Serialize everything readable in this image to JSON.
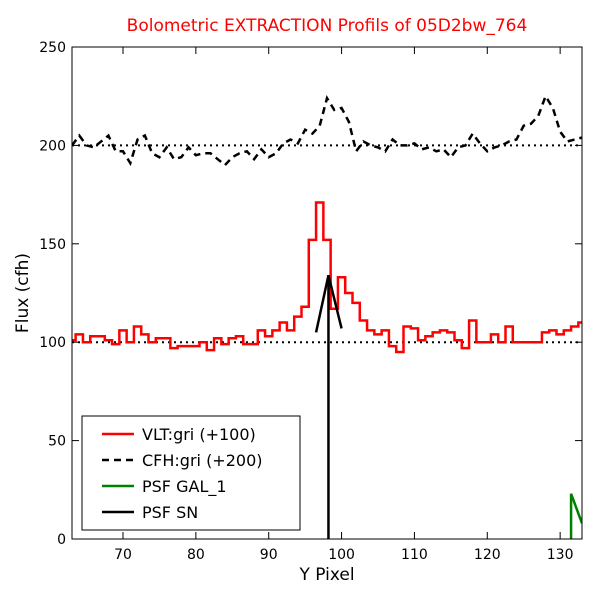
{
  "chart_data": {
    "type": "line",
    "title": "Bolometric EXTRACTION Profils of 05D2bw_764",
    "title_color": "#ff0000",
    "xlabel": "Y Pixel",
    "ylabel": "Flux (cfh)",
    "xlim": [
      63,
      133
    ],
    "ylim": [
      0,
      250
    ],
    "x_ticks": [
      70,
      80,
      90,
      100,
      110,
      120,
      130
    ],
    "y_ticks": [
      0,
      50,
      100,
      150,
      200,
      250
    ],
    "reference_lines": [
      100,
      200
    ],
    "legend_position": "lower-left",
    "series": [
      {
        "name": "VLT:gri (+100)",
        "color": "#ff0000",
        "style": "steps-solid",
        "x": [
          63,
          64,
          65,
          66,
          67,
          68,
          69,
          70,
          71,
          72,
          73,
          74,
          75,
          76,
          77,
          78,
          79,
          80,
          81,
          82,
          83,
          84,
          85,
          86,
          87,
          88,
          89,
          90,
          91,
          92,
          93,
          94,
          95,
          96,
          97,
          98,
          99,
          100,
          101,
          102,
          103,
          104,
          105,
          106,
          107,
          108,
          109,
          110,
          111,
          112,
          113,
          114,
          115,
          116,
          117,
          118,
          119,
          120,
          121,
          122,
          123,
          124,
          125,
          126,
          127,
          128,
          129,
          130,
          131,
          132,
          133
        ],
        "values": [
          101,
          104,
          100,
          103,
          103,
          101,
          99,
          106,
          100,
          108,
          104,
          100,
          102,
          102,
          97,
          98,
          98,
          98,
          100,
          96,
          102,
          99,
          102,
          103,
          99,
          99,
          106,
          103,
          106,
          110,
          106,
          113,
          118,
          152,
          171,
          152,
          117,
          133,
          125,
          120,
          111,
          106,
          104,
          106,
          98,
          95,
          108,
          107,
          101,
          103,
          105,
          106,
          105,
          101,
          97,
          111,
          100,
          100,
          104,
          100,
          108,
          100,
          100,
          100,
          100,
          105,
          106,
          104,
          106,
          108,
          110
        ]
      },
      {
        "name": "CFH:gri (+200)",
        "color": "#000000",
        "style": "dashed",
        "x": [
          63,
          64,
          65,
          66,
          67,
          68,
          69,
          70,
          71,
          72,
          73,
          74,
          75,
          76,
          77,
          78,
          79,
          80,
          81,
          82,
          83,
          84,
          85,
          86,
          87,
          88,
          89,
          90,
          91,
          92,
          93,
          94,
          95,
          96,
          97,
          98,
          99,
          100,
          101,
          102,
          103,
          104,
          105,
          106,
          107,
          108,
          109,
          110,
          111,
          112,
          113,
          114,
          115,
          116,
          117,
          118,
          119,
          120,
          121,
          122,
          123,
          124,
          125,
          126,
          127,
          128,
          129,
          130,
          131,
          132,
          133
        ],
        "values": [
          200,
          205,
          200,
          199,
          202,
          205,
          197,
          197,
          191,
          203,
          205,
          196,
          194,
          199,
          193,
          194,
          199,
          195,
          196,
          196,
          193,
          190,
          194,
          196,
          197,
          193,
          198,
          194,
          196,
          201,
          203,
          201,
          208,
          206,
          210,
          224,
          218,
          219,
          212,
          197,
          202,
          200,
          199,
          197,
          203,
          200,
          200,
          201,
          198,
          199,
          197,
          198,
          194,
          199,
          200,
          206,
          201,
          197,
          199,
          200,
          202,
          203,
          210,
          211,
          215,
          225,
          219,
          207,
          202,
          203,
          204
        ]
      },
      {
        "name": "PSF GAL_1",
        "color": "#008000",
        "style": "arrow",
        "x": [
          131.5,
          133
        ],
        "values": [
          23,
          8
        ]
      },
      {
        "name": "PSF SN",
        "color": "#000000",
        "style": "arrow",
        "x": [
          96.5,
          98.2,
          100
        ],
        "values": [
          105,
          134,
          107
        ]
      }
    ]
  }
}
